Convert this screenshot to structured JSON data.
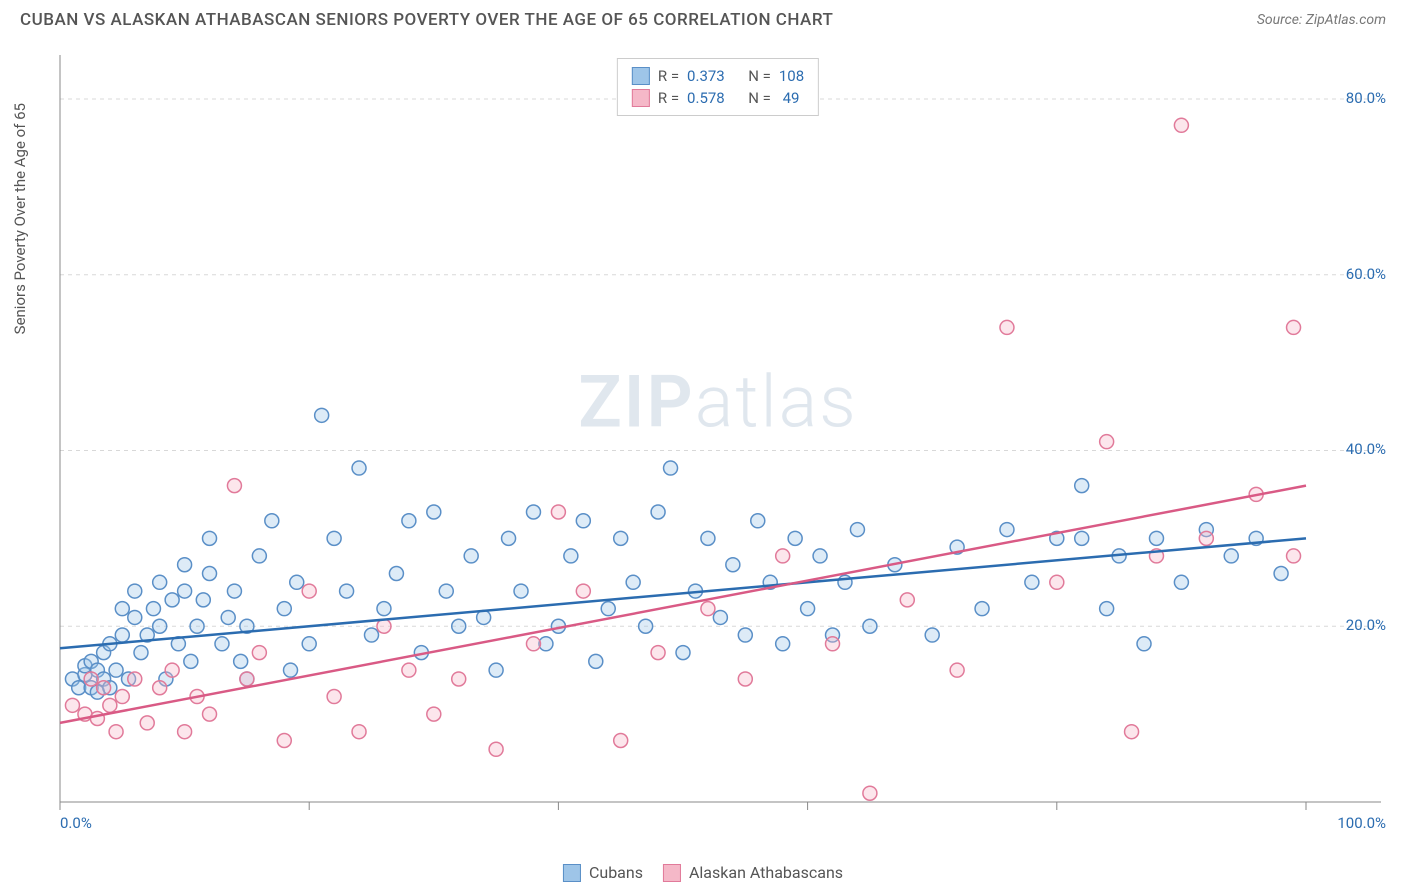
{
  "header": {
    "title": "CUBAN VS ALASKAN ATHABASCAN SENIORS POVERTY OVER THE AGE OF 65 CORRELATION CHART",
    "source_label": "Source: ZipAtlas.com"
  },
  "chart": {
    "type": "scatter",
    "y_axis_label": "Seniors Poverty Over the Age of 65",
    "watermark": "ZIPatlas",
    "background_color": "#ffffff",
    "grid_color": "#d8d8d8",
    "axis_color": "#888888",
    "tick_label_color": "#2b6cb0",
    "xlim": [
      0,
      100
    ],
    "ylim": [
      0,
      85
    ],
    "x_ticks": [
      0,
      20,
      40,
      60,
      80,
      100
    ],
    "x_tick_labels": [
      "0.0%",
      "",
      "",
      "",
      "",
      "100.0%"
    ],
    "y_ticks": [
      20,
      40,
      60,
      80
    ],
    "y_tick_labels": [
      "20.0%",
      "40.0%",
      "60.0%",
      "80.0%"
    ],
    "marker_radius": 7,
    "marker_stroke_width": 1.5,
    "marker_fill_opacity": 0.35,
    "line_width": 2.5,
    "series": [
      {
        "name": "Cubans",
        "fill_color": "#9ec5e8",
        "stroke_color": "#5a8fc7",
        "line_color": "#2b6cb0",
        "R": "0.373",
        "N": "108",
        "trend": {
          "x1": 0,
          "y1": 17.5,
          "x2": 100,
          "y2": 30
        },
        "points": [
          [
            1,
            14
          ],
          [
            1.5,
            13
          ],
          [
            2,
            14.5
          ],
          [
            2,
            15.5
          ],
          [
            2.5,
            13
          ],
          [
            2.5,
            16
          ],
          [
            3,
            12.5
          ],
          [
            3,
            15
          ],
          [
            3.5,
            14
          ],
          [
            3.5,
            17
          ],
          [
            4,
            13
          ],
          [
            4,
            18
          ],
          [
            4.5,
            15
          ],
          [
            5,
            19
          ],
          [
            5,
            22
          ],
          [
            5.5,
            14
          ],
          [
            6,
            21
          ],
          [
            6,
            24
          ],
          [
            6.5,
            17
          ],
          [
            7,
            19
          ],
          [
            7.5,
            22
          ],
          [
            8,
            20
          ],
          [
            8,
            25
          ],
          [
            8.5,
            14
          ],
          [
            9,
            23
          ],
          [
            9.5,
            18
          ],
          [
            10,
            24
          ],
          [
            10,
            27
          ],
          [
            10.5,
            16
          ],
          [
            11,
            20
          ],
          [
            11.5,
            23
          ],
          [
            12,
            26
          ],
          [
            12,
            30
          ],
          [
            13,
            18
          ],
          [
            13.5,
            21
          ],
          [
            14,
            24
          ],
          [
            14.5,
            16
          ],
          [
            15,
            20
          ],
          [
            15,
            14
          ],
          [
            16,
            28
          ],
          [
            17,
            32
          ],
          [
            18,
            22
          ],
          [
            18.5,
            15
          ],
          [
            19,
            25
          ],
          [
            20,
            18
          ],
          [
            21,
            44
          ],
          [
            22,
            30
          ],
          [
            23,
            24
          ],
          [
            24,
            38
          ],
          [
            25,
            19
          ],
          [
            26,
            22
          ],
          [
            27,
            26
          ],
          [
            28,
            32
          ],
          [
            29,
            17
          ],
          [
            30,
            33
          ],
          [
            31,
            24
          ],
          [
            32,
            20
          ],
          [
            33,
            28
          ],
          [
            34,
            21
          ],
          [
            35,
            15
          ],
          [
            36,
            30
          ],
          [
            37,
            24
          ],
          [
            38,
            33
          ],
          [
            39,
            18
          ],
          [
            40,
            20
          ],
          [
            41,
            28
          ],
          [
            42,
            32
          ],
          [
            43,
            16
          ],
          [
            44,
            22
          ],
          [
            45,
            30
          ],
          [
            46,
            25
          ],
          [
            47,
            20
          ],
          [
            48,
            33
          ],
          [
            49,
            38
          ],
          [
            50,
            17
          ],
          [
            51,
            24
          ],
          [
            52,
            30
          ],
          [
            53,
            21
          ],
          [
            54,
            27
          ],
          [
            55,
            19
          ],
          [
            56,
            32
          ],
          [
            57,
            25
          ],
          [
            58,
            18
          ],
          [
            59,
            30
          ],
          [
            60,
            22
          ],
          [
            61,
            28
          ],
          [
            62,
            19
          ],
          [
            63,
            25
          ],
          [
            64,
            31
          ],
          [
            65,
            20
          ],
          [
            67,
            27
          ],
          [
            70,
            19
          ],
          [
            72,
            29
          ],
          [
            74,
            22
          ],
          [
            76,
            31
          ],
          [
            78,
            25
          ],
          [
            80,
            30
          ],
          [
            82,
            36
          ],
          [
            84,
            22
          ],
          [
            85,
            28
          ],
          [
            87,
            18
          ],
          [
            88,
            30
          ],
          [
            90,
            25
          ],
          [
            92,
            31
          ],
          [
            94,
            28
          ],
          [
            96,
            30
          ],
          [
            98,
            26
          ],
          [
            82,
            30
          ]
        ]
      },
      {
        "name": "Alaskan Athabascans",
        "fill_color": "#f5b8c8",
        "stroke_color": "#e17a9a",
        "line_color": "#d95a85",
        "R": "0.578",
        "N": " 49",
        "trend": {
          "x1": 0,
          "y1": 9,
          "x2": 100,
          "y2": 36
        },
        "points": [
          [
            1,
            11
          ],
          [
            2,
            10
          ],
          [
            2.5,
            14
          ],
          [
            3,
            9.5
          ],
          [
            3.5,
            13
          ],
          [
            4,
            11
          ],
          [
            4.5,
            8
          ],
          [
            5,
            12
          ],
          [
            6,
            14
          ],
          [
            7,
            9
          ],
          [
            8,
            13
          ],
          [
            9,
            15
          ],
          [
            10,
            8
          ],
          [
            11,
            12
          ],
          [
            12,
            10
          ],
          [
            14,
            36
          ],
          [
            15,
            14
          ],
          [
            16,
            17
          ],
          [
            18,
            7
          ],
          [
            20,
            24
          ],
          [
            22,
            12
          ],
          [
            24,
            8
          ],
          [
            26,
            20
          ],
          [
            28,
            15
          ],
          [
            30,
            10
          ],
          [
            32,
            14
          ],
          [
            35,
            6
          ],
          [
            38,
            18
          ],
          [
            40,
            33
          ],
          [
            42,
            24
          ],
          [
            45,
            7
          ],
          [
            48,
            17
          ],
          [
            52,
            22
          ],
          [
            55,
            14
          ],
          [
            58,
            28
          ],
          [
            62,
            18
          ],
          [
            65,
            1
          ],
          [
            68,
            23
          ],
          [
            72,
            15
          ],
          [
            76,
            54
          ],
          [
            80,
            25
          ],
          [
            84,
            41
          ],
          [
            86,
            8
          ],
          [
            88,
            28
          ],
          [
            90,
            77
          ],
          [
            92,
            30
          ],
          [
            96,
            35
          ],
          [
            99,
            28
          ],
          [
            99,
            54
          ]
        ]
      }
    ],
    "legend_top": {
      "label_R": "R =",
      "label_N": "N ="
    },
    "legend_bottom": [
      {
        "label": "Cubans",
        "fill": "#9ec5e8",
        "stroke": "#5a8fc7"
      },
      {
        "label": "Alaskan Athabascans",
        "fill": "#f5b8c8",
        "stroke": "#e17a9a"
      }
    ]
  }
}
